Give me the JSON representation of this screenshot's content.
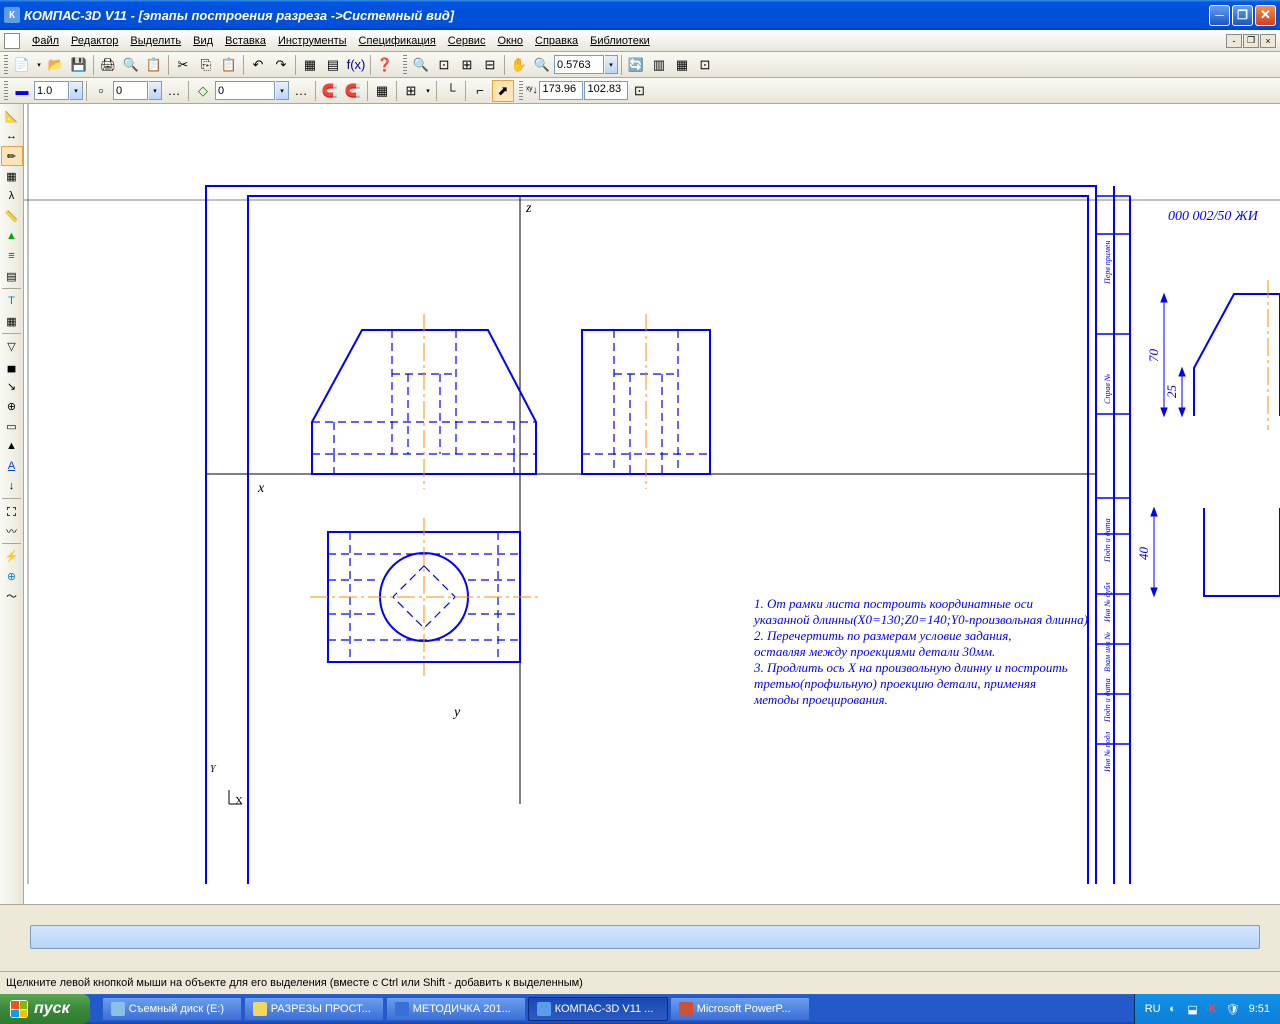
{
  "title": "КОМПАС-3D V11 - [этапы построения разреза ->Системный вид]",
  "menus": [
    "Файл",
    "Редактор",
    "Выделить",
    "Вид",
    "Вставка",
    "Инструменты",
    "Спецификация",
    "Сервис",
    "Окно",
    "Справка",
    "Библиотеки"
  ],
  "toolbar2": {
    "zoom_value": "0.5763"
  },
  "toolbar3": {
    "v1": "1.0",
    "v2": "0",
    "v3": "0",
    "coord_x": "173.96",
    "coord_y": "102.83"
  },
  "drawing": {
    "axis_labels": {
      "x": "х",
      "y": "у",
      "z": "z"
    },
    "notes": [
      "1. От рамки листа построить координатные оси",
      "указанной длинны(Х0=130;Z0=140;Y0-произвольная длинна)",
      "2. Перечертить по размерам условие задания,",
      "оставляя между проекциями детали 30мм.",
      "3. Продлить ось Х на произвольную длинну и построить",
      "третью(профильную) проекцию детали, применяя",
      "методы проецирования."
    ],
    "right_labels": {
      "top": "000 002/50 ЖИ",
      "dim1": "70",
      "dim2": "25",
      "dim3": "40"
    },
    "colors": {
      "frame": "#0000ff",
      "thin": "#000000",
      "axis": "#ff8c00",
      "text": "#0000ff"
    }
  },
  "status": "Щелкните левой кнопкой мыши на объекте для его выделения (вместе с Ctrl или Shift - добавить к выделенным)",
  "taskbar": {
    "start": "пуск",
    "items": [
      {
        "label": "Съемный диск (E:)",
        "color": "#88c0e8"
      },
      {
        "label": "РАЗРЕЗЫ ПРОСТ...",
        "color": "#f0d860"
      },
      {
        "label": "МЕТОДИЧКА 201...",
        "color": "#3a6fd8"
      },
      {
        "label": "КОМПАС-3D V11 ...",
        "color": "#5a9de8",
        "active": true
      },
      {
        "label": "Microsoft PowerP...",
        "color": "#d05030"
      }
    ],
    "lang": "RU",
    "clock": "9:51"
  }
}
